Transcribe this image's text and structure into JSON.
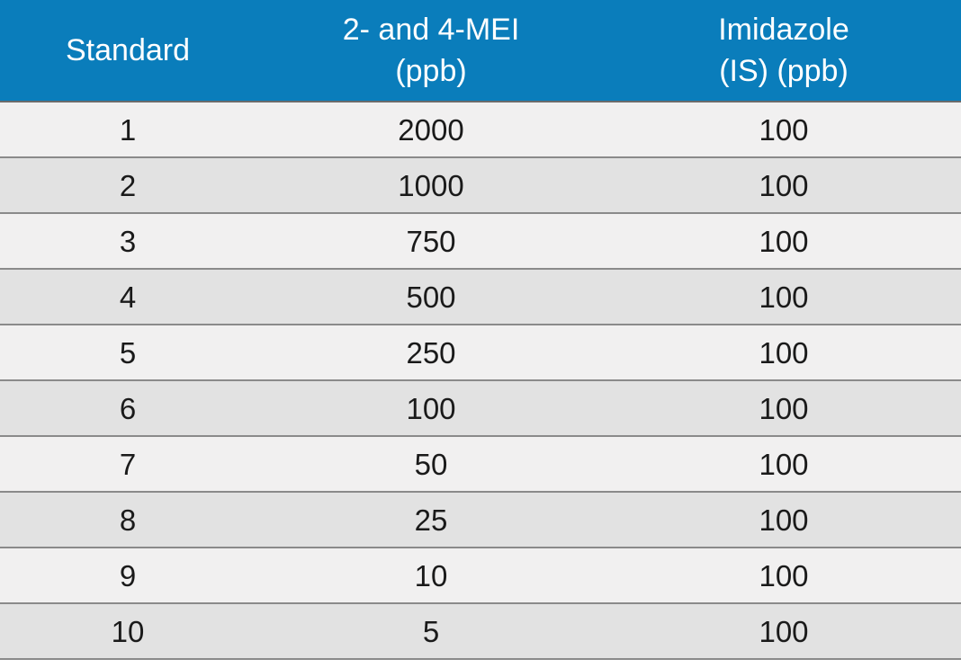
{
  "table": {
    "header": {
      "col1": "Standard",
      "col2_line1": "2- and 4-MEI",
      "col2_line2": "(ppb)",
      "col3_line1": "Imidazole",
      "col3_line2": "(IS) (ppb)"
    },
    "rows": [
      {
        "standard": "1",
        "mei": "2000",
        "imidazole": "100"
      },
      {
        "standard": "2",
        "mei": "1000",
        "imidazole": "100"
      },
      {
        "standard": "3",
        "mei": "750",
        "imidazole": "100"
      },
      {
        "standard": "4",
        "mei": "500",
        "imidazole": "100"
      },
      {
        "standard": "5",
        "mei": "250",
        "imidazole": "100"
      },
      {
        "standard": "6",
        "mei": "100",
        "imidazole": "100"
      },
      {
        "standard": "7",
        "mei": "50",
        "imidazole": "100"
      },
      {
        "standard": "8",
        "mei": "25",
        "imidazole": "100"
      },
      {
        "standard": "9",
        "mei": "10",
        "imidazole": "100"
      },
      {
        "standard": "10",
        "mei": "5",
        "imidazole": "100"
      }
    ]
  },
  "colors": {
    "header_bg": "#0a7dbb",
    "header_text": "#ffffff",
    "row_odd": "#f1f0f0",
    "row_even": "#e2e2e2"
  }
}
